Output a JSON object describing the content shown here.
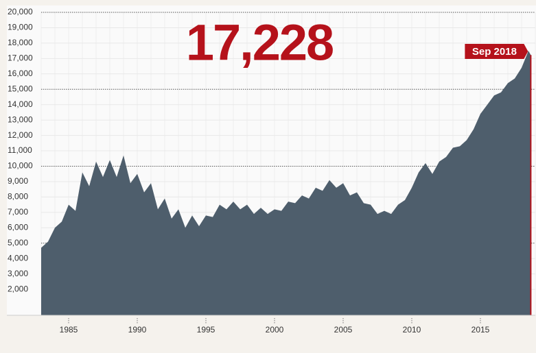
{
  "chart_data": {
    "type": "area",
    "annotations": [
      "17,228",
      "Sep 2018"
    ],
    "x": [
      1983.0,
      1983.5,
      1984.0,
      1984.5,
      1985.0,
      1985.5,
      1986.0,
      1986.5,
      1987.0,
      1987.5,
      1988.0,
      1988.5,
      1989.0,
      1989.5,
      1990.0,
      1990.5,
      1991.0,
      1991.5,
      1992.0,
      1992.5,
      1993.0,
      1993.5,
      1994.0,
      1994.5,
      1995.0,
      1995.5,
      1996.0,
      1996.5,
      1997.0,
      1997.5,
      1998.0,
      1998.5,
      1999.0,
      1999.5,
      2000.0,
      2000.5,
      2001.0,
      2001.5,
      2002.0,
      2002.5,
      2003.0,
      2003.5,
      2004.0,
      2004.5,
      2005.0,
      2005.5,
      2006.0,
      2006.5,
      2007.0,
      2007.5,
      2008.0,
      2008.5,
      2009.0,
      2009.5,
      2010.0,
      2010.5,
      2011.0,
      2011.5,
      2012.0,
      2012.5,
      2013.0,
      2013.5,
      2014.0,
      2014.5,
      2015.0,
      2015.5,
      2016.0,
      2016.5,
      2017.0,
      2017.5,
      2018.0,
      2018.5,
      2018.67
    ],
    "values": [
      4700,
      5100,
      6000,
      6400,
      7500,
      7100,
      9600,
      8700,
      10300,
      9300,
      10400,
      9300,
      10700,
      8900,
      9500,
      8300,
      8900,
      7200,
      7900,
      6600,
      7200,
      6000,
      6800,
      6100,
      6800,
      6700,
      7500,
      7200,
      7700,
      7200,
      7500,
      6900,
      7300,
      6900,
      7200,
      7100,
      7700,
      7600,
      8100,
      7900,
      8600,
      8400,
      9100,
      8600,
      8900,
      8100,
      8300,
      7600,
      7500,
      6900,
      7100,
      6900,
      7500,
      7800,
      8600,
      9600,
      10200,
      9500,
      10300,
      10600,
      11200,
      11300,
      11700,
      12400,
      13400,
      14000,
      14600,
      14800,
      15400,
      15700,
      16400,
      17500,
      17228
    ],
    "color": "#4e5e6c",
    "xlim": [
      1983,
      2019
    ],
    "xticks": [
      1985,
      1990,
      1995,
      2000,
      2005,
      2010,
      2015
    ],
    "ylim": [
      0,
      20000
    ],
    "yticks": [
      {
        "value": 2000,
        "label": "2,000"
      },
      {
        "value": 3000,
        "label": "3,000"
      },
      {
        "value": 4000,
        "label": "4,000"
      },
      {
        "value": 5000,
        "label": "5,000"
      },
      {
        "value": 6000,
        "label": "6,000"
      },
      {
        "value": 7000,
        "label": "7,000"
      },
      {
        "value": 8000,
        "label": "8,000"
      },
      {
        "value": 9000,
        "label": "9,000"
      },
      {
        "value": 10000,
        "label": "10,000"
      },
      {
        "value": 11000,
        "label": "11,000"
      },
      {
        "value": 12000,
        "label": "12,000"
      },
      {
        "value": 13000,
        "label": "13,000"
      },
      {
        "value": 14000,
        "label": "14,000"
      },
      {
        "value": 15000,
        "label": "15,000"
      },
      {
        "value": 16000,
        "label": "16,000"
      },
      {
        "value": 17000,
        "label": "17,000"
      },
      {
        "value": 18000,
        "label": "18,000"
      },
      {
        "value": 19000,
        "label": "19,000"
      },
      {
        "value": 20000,
        "label": "20,000"
      }
    ],
    "grid": true,
    "highlight_color": "#b5121b"
  }
}
